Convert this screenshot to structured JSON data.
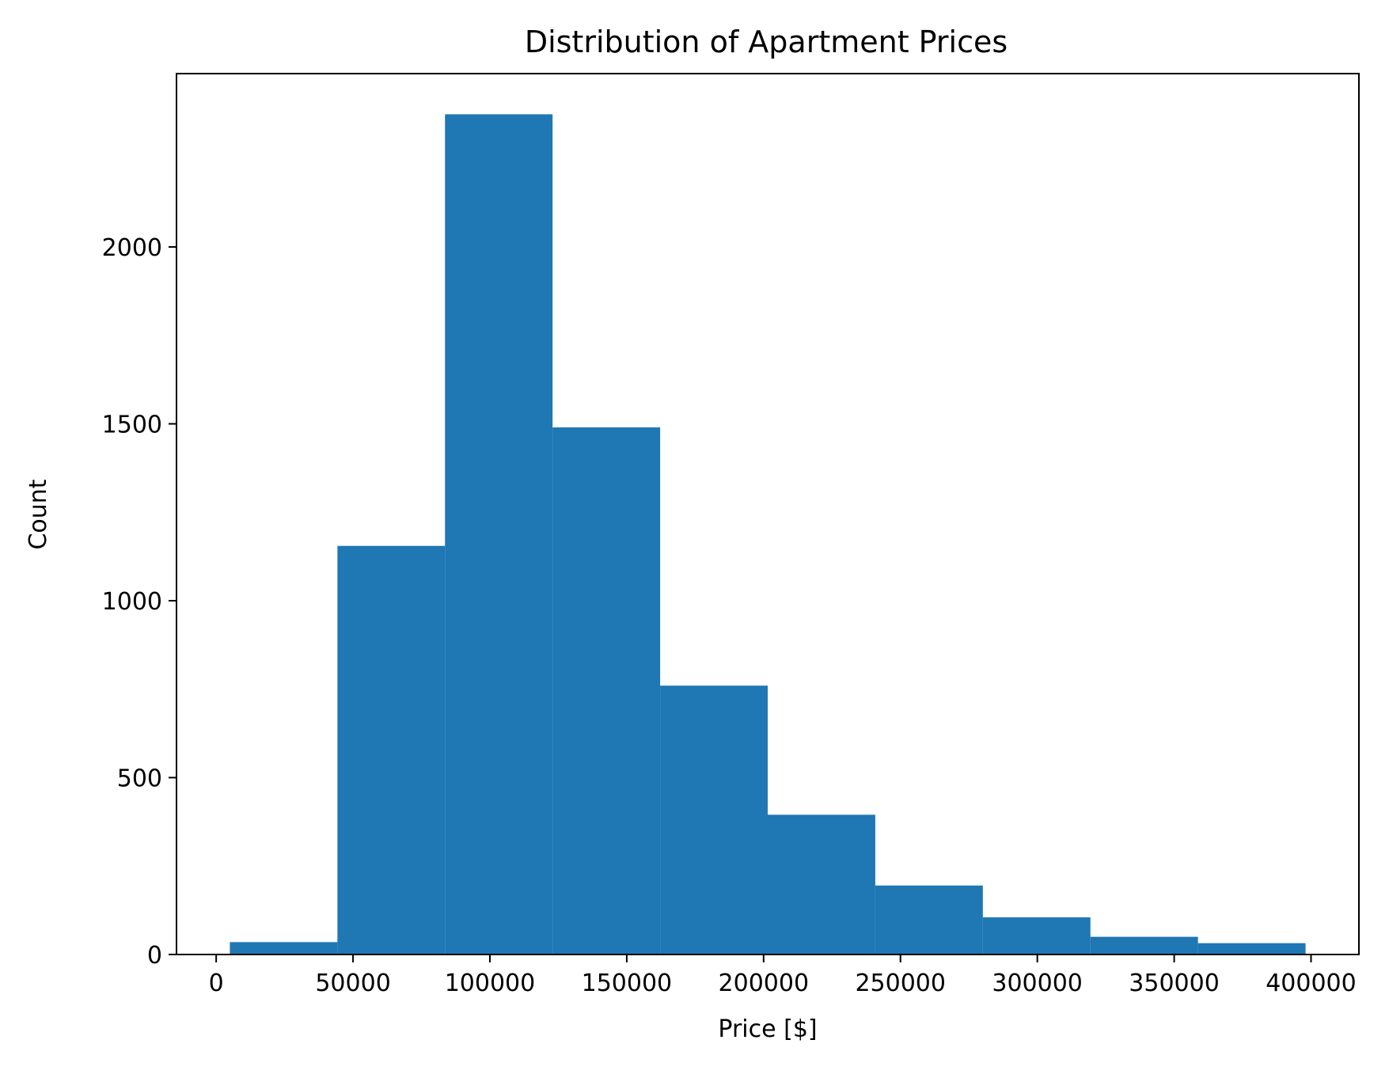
{
  "chart_data": {
    "type": "bar",
    "title": "Distribution of Apartment Prices",
    "xlabel": "Price [$]",
    "ylabel": "Count",
    "bar_color": "#1f77b4",
    "grid": false,
    "legend": "none",
    "xlim": [
      -14500,
      417500
    ],
    "ylim": [
      0,
      2490
    ],
    "bin_edges": [
      5000,
      44300,
      83600,
      122900,
      162200,
      201500,
      240800,
      280100,
      319400,
      358700,
      398000
    ],
    "values": [
      35,
      1155,
      2375,
      1490,
      760,
      395,
      195,
      105,
      50,
      32
    ],
    "x_ticks": [
      {
        "value": 0,
        "label": "0"
      },
      {
        "value": 50000,
        "label": "50000"
      },
      {
        "value": 100000,
        "label": "100000"
      },
      {
        "value": 150000,
        "label": "150000"
      },
      {
        "value": 200000,
        "label": "200000"
      },
      {
        "value": 250000,
        "label": "250000"
      },
      {
        "value": 300000,
        "label": "300000"
      },
      {
        "value": 350000,
        "label": "350000"
      },
      {
        "value": 400000,
        "label": "400000"
      }
    ],
    "y_ticks": [
      {
        "value": 0,
        "label": "0"
      },
      {
        "value": 500,
        "label": "500"
      },
      {
        "value": 1000,
        "label": "1000"
      },
      {
        "value": 1500,
        "label": "1500"
      },
      {
        "value": 2000,
        "label": "2000"
      }
    ]
  }
}
